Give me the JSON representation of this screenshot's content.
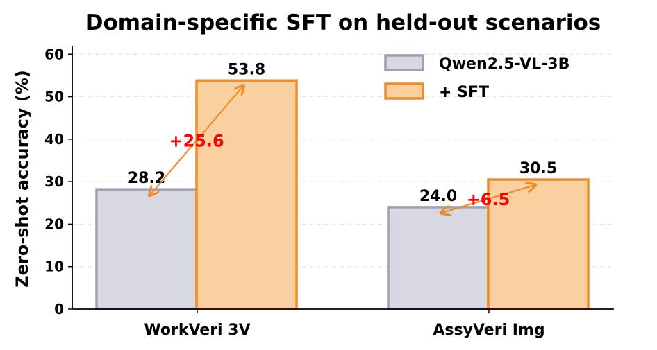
{
  "chart_data": {
    "type": "bar",
    "title": "Domain-specific SFT on held-out scenarios",
    "xlabel": "",
    "ylabel": "Zero-shot accuracy (%)",
    "ylim": [
      0,
      62
    ],
    "yticks": [
      0,
      10,
      20,
      30,
      40,
      50,
      60
    ],
    "grid": "horizontal-dashed",
    "legend": "top-right",
    "categories": [
      "WorkVeri 3V",
      "AssyVeri Img"
    ],
    "series": [
      {
        "name": "Qwen2.5-VL-3B",
        "values": [
          28.2,
          24.0
        ],
        "labels": [
          "28.2",
          "24.0"
        ],
        "fill": "#d8d8e2",
        "stroke": "#9f9fb1"
      },
      {
        "name": "+ SFT",
        "values": [
          53.8,
          30.5
        ],
        "labels": [
          "53.8",
          "30.5"
        ],
        "fill": "#fbd0a0",
        "stroke": "#f08c28"
      }
    ],
    "annotations": [
      "+25.6",
      "+6.5"
    ],
    "arrow_color": "#f08c28",
    "annotation_color": "#ff0000"
  }
}
